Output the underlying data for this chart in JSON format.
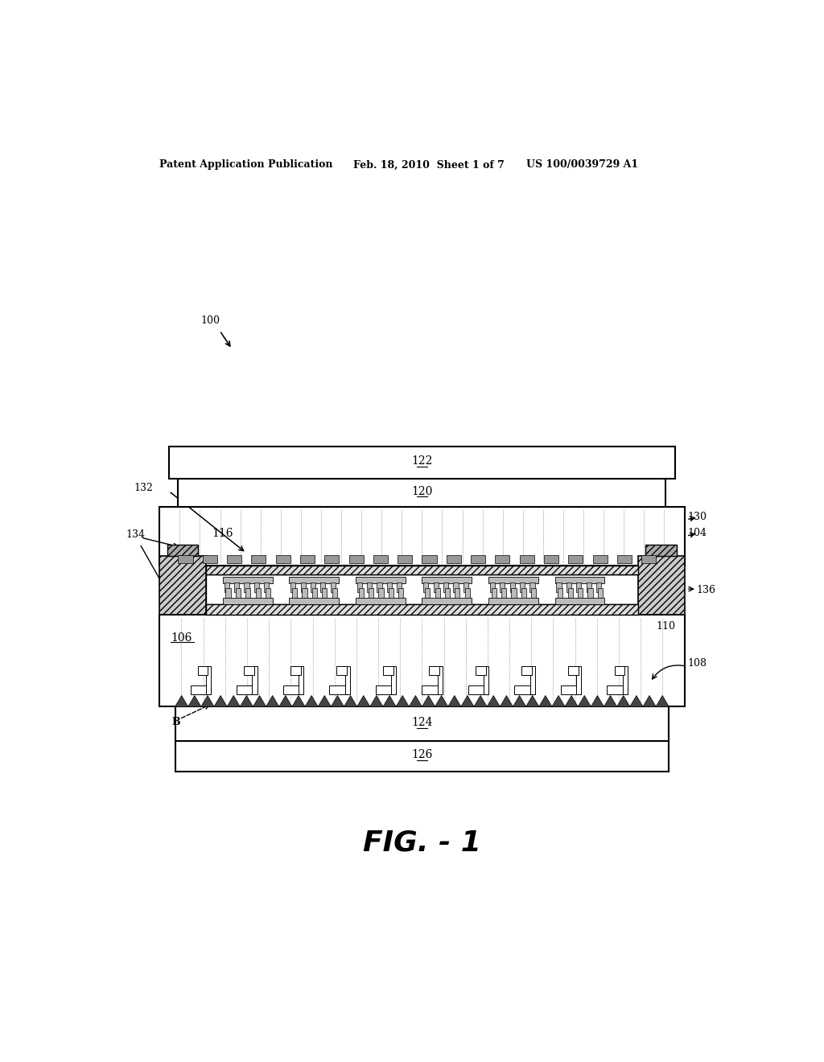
{
  "bg_color": "#ffffff",
  "header_left": "Patent Application Publication",
  "header_center": "Feb. 18, 2010  Sheet 1 of 7",
  "header_right": "US 100/0039729 A1",
  "fig_label": "FIG. - 1"
}
